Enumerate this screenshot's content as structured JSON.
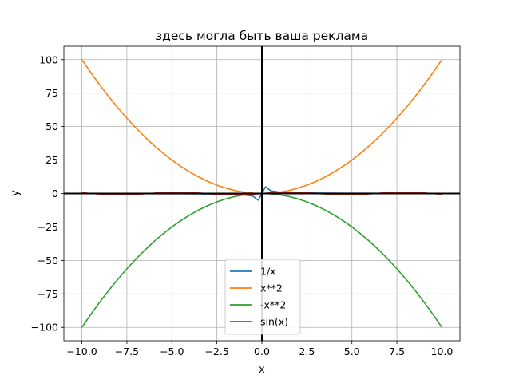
{
  "chart_data": {
    "type": "line",
    "title": "здесь могла быть ваша реклама",
    "xlabel": "x",
    "ylabel": "y",
    "xlim": [
      -11,
      11
    ],
    "ylim": [
      -110,
      110
    ],
    "xticks": [
      -10,
      -7.5,
      -5,
      -2.5,
      0,
      2.5,
      5,
      7.5,
      10
    ],
    "xtick_labels": [
      "−10.0",
      "−7.5",
      "−5.0",
      "−2.5",
      "0.0",
      "2.5",
      "5.0",
      "7.5",
      "10.0"
    ],
    "yticks": [
      -100,
      -75,
      -50,
      -25,
      0,
      25,
      50,
      75,
      100
    ],
    "ytick_labels": [
      "−100",
      "−75",
      "−50",
      "−25",
      "0",
      "25",
      "50",
      "75",
      "100"
    ],
    "grid": true,
    "legend_position": "lower-center",
    "reference_lines": {
      "x": 0,
      "y": 0,
      "color": "#000000"
    },
    "x": [
      -10.0,
      -9.5,
      -9.0,
      -8.5,
      -8.0,
      -7.5,
      -7.0,
      -6.5,
      -6.0,
      -5.5,
      -5.0,
      -4.5,
      -4.0,
      -3.5,
      -3.0,
      -2.5,
      -2.0,
      -1.5,
      -1.0,
      -0.5,
      -0.2,
      0.2,
      0.5,
      1.0,
      1.5,
      2.0,
      2.5,
      3.0,
      3.5,
      4.0,
      4.5,
      5.0,
      5.5,
      6.0,
      6.5,
      7.0,
      7.5,
      8.0,
      8.5,
      9.0,
      9.5,
      10.0
    ],
    "series": [
      {
        "name": "1/x",
        "color": "#1f77b4",
        "values": [
          -0.1,
          -0.11,
          -0.11,
          -0.12,
          -0.13,
          -0.13,
          -0.14,
          -0.15,
          -0.17,
          -0.18,
          -0.2,
          -0.22,
          -0.25,
          -0.29,
          -0.33,
          -0.4,
          -0.5,
          -0.67,
          -1.0,
          -2.0,
          -5.0,
          5.0,
          2.0,
          1.0,
          0.67,
          0.5,
          0.4,
          0.33,
          0.29,
          0.25,
          0.22,
          0.2,
          0.18,
          0.17,
          0.15,
          0.14,
          0.13,
          0.13,
          0.12,
          0.11,
          0.11,
          0.1
        ]
      },
      {
        "name": "x**2",
        "color": "#ff7f0e",
        "values": [
          100.0,
          90.25,
          81.0,
          72.25,
          64.0,
          56.25,
          49.0,
          42.25,
          36.0,
          30.25,
          25.0,
          20.25,
          16.0,
          12.25,
          9.0,
          6.25,
          4.0,
          2.25,
          1.0,
          0.25,
          0.04,
          0.04,
          0.25,
          1.0,
          2.25,
          4.0,
          6.25,
          9.0,
          12.25,
          16.0,
          20.25,
          25.0,
          30.25,
          36.0,
          42.25,
          49.0,
          56.25,
          64.0,
          72.25,
          81.0,
          90.25,
          100.0
        ]
      },
      {
        "name": "-x**2",
        "color": "#2ca02c",
        "values": [
          -100.0,
          -90.25,
          -81.0,
          -72.25,
          -64.0,
          -56.25,
          -49.0,
          -42.25,
          -36.0,
          -30.25,
          -25.0,
          -20.25,
          -16.0,
          -12.25,
          -9.0,
          -6.25,
          -4.0,
          -2.25,
          -1.0,
          -0.25,
          -0.04,
          -0.04,
          -0.25,
          -1.0,
          -2.25,
          -4.0,
          -6.25,
          -9.0,
          -12.25,
          -16.0,
          -20.25,
          -25.0,
          -30.25,
          -36.0,
          -42.25,
          -49.0,
          -56.25,
          -64.0,
          -72.25,
          -81.0,
          -90.25,
          -100.0
        ]
      },
      {
        "name": "sin(x)",
        "color": "#d62728",
        "values": [
          0.54,
          0.08,
          -0.41,
          -0.8,
          -0.99,
          -0.94,
          -0.66,
          -0.22,
          0.28,
          0.71,
          0.96,
          0.98,
          0.76,
          0.35,
          -0.14,
          -0.6,
          -0.91,
          -1.0,
          -0.84,
          -0.48,
          -0.2,
          0.2,
          0.48,
          0.84,
          1.0,
          0.91,
          0.6,
          0.14,
          -0.35,
          -0.76,
          -0.98,
          -0.96,
          -0.71,
          -0.28,
          0.22,
          0.66,
          0.94,
          0.99,
          0.8,
          0.41,
          -0.08,
          -0.54
        ]
      }
    ]
  }
}
